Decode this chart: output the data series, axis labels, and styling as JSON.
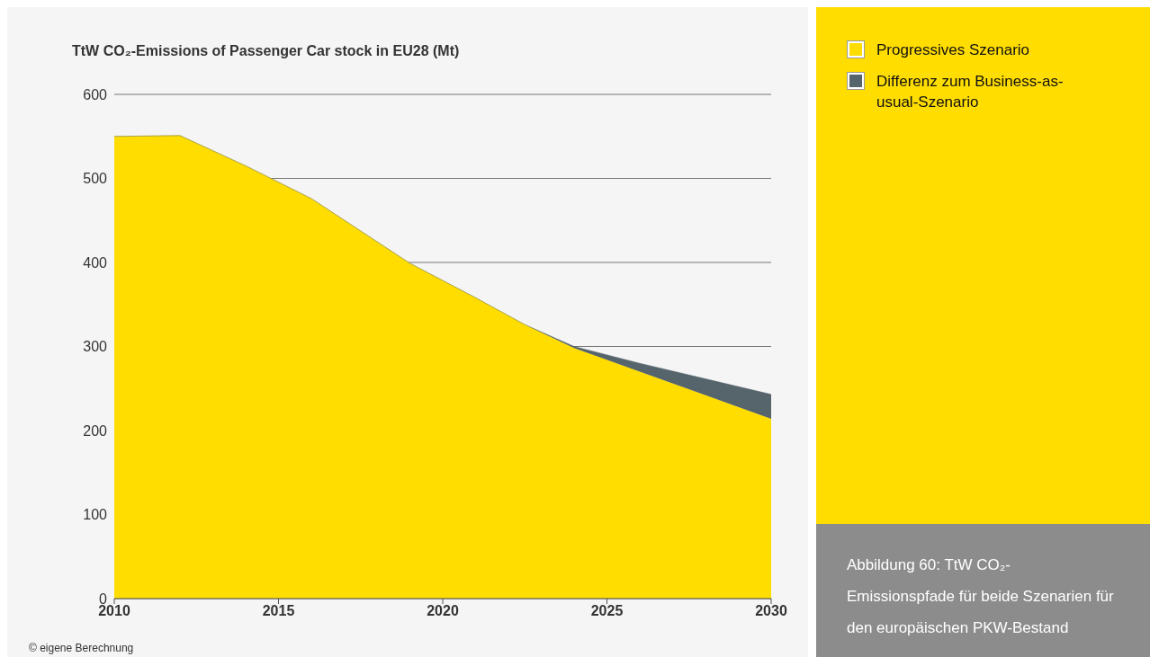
{
  "chart_data": {
    "type": "area",
    "title": "TtW CO₂-Emissions of Passenger Car stock in EU28 (Mt)",
    "x": [
      2010,
      2012,
      2014,
      2016,
      2019,
      2021,
      2022.5,
      2024,
      2026,
      2030
    ],
    "stacked": true,
    "series": [
      {
        "name": "Progressives Szenario",
        "color": "#ffdd00",
        "values": [
          550,
          551,
          515,
          476,
          399,
          358,
          326,
          298,
          270,
          214
        ]
      },
      {
        "name": "Differenz zum Business-as-usual-Szenario",
        "color": "#56656c",
        "values": [
          0,
          0,
          0,
          0,
          0,
          0,
          0,
          2,
          10,
          29
        ]
      }
    ],
    "xlim": [
      2010,
      2030
    ],
    "xticks": [
      2010,
      2015,
      2020,
      2025,
      2030
    ],
    "ylim": [
      0,
      600
    ],
    "yticks": [
      0,
      100,
      200,
      300,
      400,
      500,
      600
    ],
    "grid": "y",
    "legend": "right",
    "marker": "none",
    "annotations": [
      "© eigene Berechnung",
      "Abbildung 60: TtW CO₂-Emissionspfade für beide Szenarien für den europäischen PKW-Bestand"
    ]
  }
}
